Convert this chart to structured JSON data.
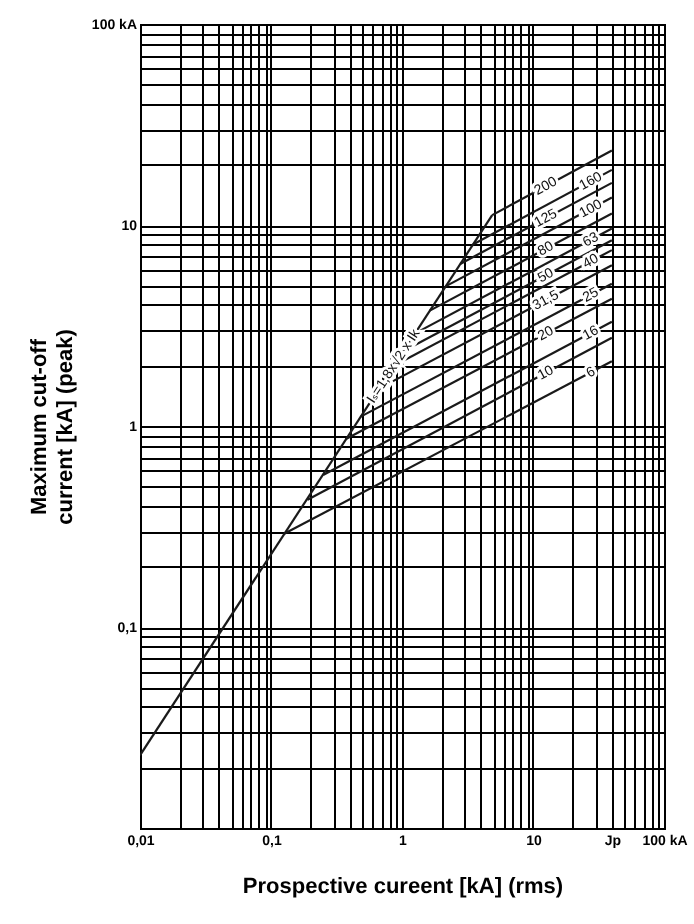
{
  "chart_data": {
    "type": "line",
    "xlabel": "Prospective cureent [kA] (rms)",
    "ylabel": "Maximum cut-off current [kA] (peak)",
    "log": "xy",
    "grid": true,
    "xlim": [
      0.01,
      100
    ],
    "ylim": [
      0.01,
      100
    ],
    "xticks": [
      {
        "value": 0.01,
        "label": "0,01"
      },
      {
        "value": 0.02,
        "label": null
      },
      {
        "value": 0.03,
        "label": null
      },
      {
        "value": 0.04,
        "label": null
      },
      {
        "value": 0.05,
        "label": null
      },
      {
        "value": 0.06,
        "label": null
      },
      {
        "value": 0.07,
        "label": null
      },
      {
        "value": 0.08,
        "label": null
      },
      {
        "value": 0.09,
        "label": null
      },
      {
        "value": 0.1,
        "label": "0,1"
      },
      {
        "value": 0.2,
        "label": null
      },
      {
        "value": 0.3,
        "label": null
      },
      {
        "value": 0.4,
        "label": null
      },
      {
        "value": 0.5,
        "label": null
      },
      {
        "value": 0.6,
        "label": null
      },
      {
        "value": 0.7,
        "label": null
      },
      {
        "value": 0.8,
        "label": null
      },
      {
        "value": 0.9,
        "label": null
      },
      1,
      {
        "value": 2,
        "label": null
      },
      {
        "value": 3,
        "label": null
      },
      {
        "value": 4,
        "label": null
      },
      {
        "value": 5,
        "label": null
      },
      {
        "value": 6,
        "label": null
      },
      {
        "value": 7,
        "label": null
      },
      {
        "value": 8,
        "label": null
      },
      {
        "value": 9,
        "label": null
      },
      10,
      {
        "value": 20,
        "label": null
      },
      {
        "value": 30,
        "label": null
      },
      {
        "value": 40,
        "label": "Jp"
      },
      {
        "value": 50,
        "label": null
      },
      {
        "value": 60,
        "label": null
      },
      {
        "value": 70,
        "label": null
      },
      {
        "value": 80,
        "label": null
      },
      {
        "value": 90,
        "label": null
      },
      {
        "value": 100,
        "label": "100 kA"
      }
    ],
    "yticks": [
      {
        "value": 0.02,
        "label": null
      },
      {
        "value": 0.03,
        "label": null
      },
      {
        "value": 0.04,
        "label": null
      },
      {
        "value": 0.05,
        "label": null
      },
      {
        "value": 0.06,
        "label": null
      },
      {
        "value": 0.07,
        "label": null
      },
      {
        "value": 0.08,
        "label": null
      },
      {
        "value": 0.09,
        "label": null
      },
      {
        "value": 0.1,
        "label": "0,1"
      },
      {
        "value": 0.2,
        "label": null
      },
      {
        "value": 0.3,
        "label": null
      },
      {
        "value": 0.4,
        "label": null
      },
      {
        "value": 0.5,
        "label": null
      },
      {
        "value": 0.6,
        "label": null
      },
      {
        "value": 0.7,
        "label": null
      },
      {
        "value": 0.8,
        "label": null
      },
      {
        "value": 0.9,
        "label": null
      },
      1,
      {
        "value": 2,
        "label": null
      },
      {
        "value": 3,
        "label": null
      },
      {
        "value": 4,
        "label": null
      },
      {
        "value": 5,
        "label": null
      },
      {
        "value": 6,
        "label": null
      },
      {
        "value": 7,
        "label": null
      },
      {
        "value": 8,
        "label": null
      },
      {
        "value": 9,
        "label": null
      },
      10,
      {
        "value": 20,
        "label": null
      },
      {
        "value": 30,
        "label": null
      },
      {
        "value": 40,
        "label": null
      },
      {
        "value": 50,
        "label": null
      },
      {
        "value": 60,
        "label": null
      },
      {
        "value": 70,
        "label": null
      },
      {
        "value": 80,
        "label": null
      },
      {
        "value": 90,
        "label": null
      },
      {
        "value": 100,
        "label": "100 kA"
      }
    ],
    "series": [
      {
        "name": "Iₛ=1,8x√2 x Ik",
        "color": "#1a1a1a",
        "x": [
          0.01,
          4.88
        ],
        "values": [
          0.023,
          11.2
        ]
      },
      {
        "name": "200",
        "color": "#1a1a1a",
        "x": [
          4.88,
          40
        ],
        "values": [
          11.2,
          23.5
        ]
      },
      {
        "name": "160",
        "color": "#1a1a1a",
        "x": [
          3.48,
          40
        ],
        "values": [
          8.0,
          18.8
        ]
      },
      {
        "name": "125",
        "color": "#1a1a1a",
        "x": [
          2.78,
          40
        ],
        "values": [
          6.4,
          16.2
        ]
      },
      {
        "name": "100",
        "color": "#1a1a1a",
        "x": [
          2.15,
          40
        ],
        "values": [
          4.95,
          13.7
        ]
      },
      {
        "name": "80",
        "color": "#1a1a1a",
        "x": [
          1.63,
          40
        ],
        "values": [
          3.75,
          11.4
        ]
      },
      {
        "name": "63",
        "color": "#1a1a1a",
        "x": [
          1.26,
          40
        ],
        "values": [
          2.89,
          9.6
        ]
      },
      {
        "name": "50",
        "color": "#1a1a1a",
        "x": [
          1.03,
          40
        ],
        "values": [
          2.36,
          8.4
        ]
      },
      {
        "name": "40",
        "color": "#1a1a1a",
        "x": [
          0.86,
          40
        ],
        "values": [
          1.99,
          7.5
        ]
      },
      {
        "name": "31,5",
        "color": "#1a1a1a",
        "x": [
          0.66,
          40
        ],
        "values": [
          1.53,
          6.3
        ]
      },
      {
        "name": "25",
        "color": "#1a1a1a",
        "x": [
          0.48,
          40
        ],
        "values": [
          1.11,
          5.1
        ]
      },
      {
        "name": "20",
        "color": "#1a1a1a",
        "x": [
          0.37,
          40
        ],
        "values": [
          0.86,
          4.3
        ]
      },
      {
        "name": "16",
        "color": "#1a1a1a",
        "x": [
          0.25,
          40
        ],
        "values": [
          0.57,
          3.3
        ]
      },
      {
        "name": "10",
        "color": "#1a1a1a",
        "x": [
          0.19,
          40
        ],
        "values": [
          0.43,
          2.75
        ]
      },
      {
        "name": "6",
        "color": "#1a1a1a",
        "x": [
          0.125,
          40
        ],
        "values": [
          0.29,
          2.1
        ]
      }
    ]
  }
}
